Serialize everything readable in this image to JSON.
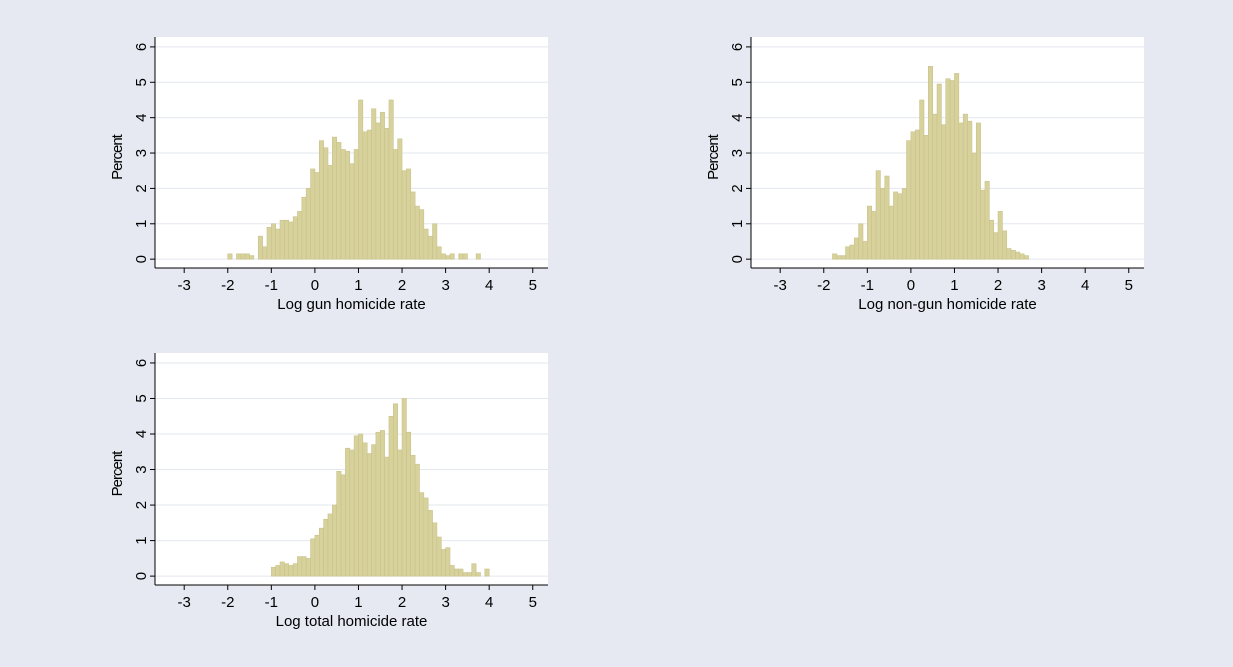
{
  "chart_data": [
    {
      "type": "histogram",
      "xlabel": "Log gun homicide rate",
      "ylabel": "Percent",
      "color": "#d7d29b",
      "bins": [
        -2.0,
        -1.9,
        -1.8,
        -1.7,
        -1.6,
        -1.5,
        -1.4,
        -1.3,
        -1.2,
        -1.1,
        -1.0,
        -0.9,
        -0.8,
        -0.7,
        -0.6,
        -0.5,
        -0.4,
        -0.3,
        -0.2,
        -0.1,
        0.0,
        0.1,
        0.2,
        0.3,
        0.4,
        0.5,
        0.6,
        0.7,
        0.8,
        0.9,
        1.0,
        1.1,
        1.2,
        1.3,
        1.4,
        1.5,
        1.6,
        1.7,
        1.8,
        1.9,
        2.0,
        2.1,
        2.2,
        2.3,
        2.4,
        2.5,
        2.6,
        2.7,
        2.8,
        2.9,
        3.0,
        3.1,
        3.2,
        3.3,
        3.4,
        3.5,
        3.6,
        3.7,
        3.8
      ],
      "values": [
        0.15,
        0,
        0.15,
        0.15,
        0.15,
        0.1,
        0,
        0.65,
        0.35,
        0.9,
        1.0,
        0.85,
        1.1,
        1.1,
        1.05,
        1.2,
        1.35,
        1.75,
        2.0,
        2.55,
        2.45,
        3.35,
        3.15,
        2.65,
        3.45,
        3.3,
        3.1,
        3.05,
        2.7,
        3.1,
        4.5,
        3.6,
        3.65,
        4.25,
        3.85,
        4.15,
        3.7,
        4.5,
        3.1,
        3.4,
        2.5,
        2.55,
        1.9,
        1.5,
        1.4,
        0.85,
        0.65,
        1.0,
        0.35,
        0.15,
        0.1,
        0.15,
        0,
        0.15,
        0.15,
        0,
        0,
        0.15
      ],
      "xlim": [
        -3.67,
        5.35
      ],
      "ylim": [
        -0.25,
        6.28
      ],
      "xticks": [
        -3,
        -2,
        -1,
        0,
        1,
        2,
        3,
        4,
        5
      ],
      "yticks": [
        0,
        1,
        2,
        3,
        4,
        5,
        6
      ],
      "grid": true
    },
    {
      "type": "histogram",
      "xlabel": "Log non-gun homicide rate",
      "ylabel": "Percent",
      "color": "#d7d29b",
      "bins": [
        -1.8,
        -1.7,
        -1.6,
        -1.5,
        -1.4,
        -1.3,
        -1.2,
        -1.1,
        -1.0,
        -0.9,
        -0.8,
        -0.7,
        -0.6,
        -0.5,
        -0.4,
        -0.3,
        -0.2,
        -0.1,
        0.0,
        0.1,
        0.2,
        0.3,
        0.4,
        0.5,
        0.6,
        0.7,
        0.8,
        0.9,
        1.0,
        1.1,
        1.2,
        1.3,
        1.4,
        1.5,
        1.6,
        1.7,
        1.8,
        1.9,
        2.0,
        2.1,
        2.2,
        2.3,
        2.4,
        2.5,
        2.6,
        2.7
      ],
      "values": [
        0.15,
        0.1,
        0.1,
        0.35,
        0.4,
        0.6,
        1.0,
        0.5,
        1.5,
        1.35,
        2.5,
        2.0,
        2.35,
        1.5,
        1.9,
        1.85,
        2.0,
        3.35,
        3.6,
        3.65,
        4.5,
        3.5,
        5.45,
        4.1,
        4.95,
        3.8,
        5.1,
        5.05,
        5.25,
        3.85,
        4.1,
        3.9,
        3.0,
        3.85,
        1.95,
        2.2,
        1.1,
        0.75,
        1.35,
        0.8,
        0.3,
        0.25,
        0.2,
        0.15,
        0.1
      ],
      "xlim": [
        -3.67,
        5.35
      ],
      "ylim": [
        -0.25,
        6.28
      ],
      "xticks": [
        -3,
        -2,
        -1,
        0,
        1,
        2,
        3,
        4,
        5
      ],
      "yticks": [
        0,
        1,
        2,
        3,
        4,
        5,
        6
      ],
      "grid": true
    },
    {
      "type": "histogram",
      "xlabel": "Log total homicide rate",
      "ylabel": "Percent",
      "color": "#d7d29b",
      "bins": [
        -1.0,
        -0.9,
        -0.8,
        -0.7,
        -0.6,
        -0.5,
        -0.4,
        -0.3,
        -0.2,
        -0.1,
        0.0,
        0.1,
        0.2,
        0.3,
        0.4,
        0.5,
        0.6,
        0.7,
        0.8,
        0.9,
        1.0,
        1.1,
        1.2,
        1.3,
        1.4,
        1.5,
        1.6,
        1.7,
        1.8,
        1.9,
        2.0,
        2.1,
        2.2,
        2.3,
        2.4,
        2.5,
        2.6,
        2.7,
        2.8,
        2.9,
        3.0,
        3.1,
        3.2,
        3.3,
        3.4,
        3.5,
        3.6,
        3.7,
        3.8,
        3.9,
        4.0
      ],
      "values": [
        0.25,
        0.3,
        0.4,
        0.35,
        0.3,
        0.35,
        0.55,
        0.55,
        0.5,
        1.05,
        1.15,
        1.35,
        1.6,
        1.75,
        2.0,
        2.95,
        2.85,
        3.6,
        3.55,
        3.95,
        4.0,
        3.75,
        3.45,
        3.7,
        4.05,
        4.1,
        3.35,
        4.5,
        4.85,
        3.55,
        5.0,
        4.05,
        3.4,
        3.15,
        2.35,
        2.2,
        1.85,
        1.5,
        1.1,
        0.75,
        0.8,
        0.3,
        0.2,
        0.2,
        0.1,
        0.1,
        0.35,
        0.1,
        0,
        0.2
      ],
      "xlim": [
        -3.67,
        5.35
      ],
      "ylim": [
        -0.25,
        6.28
      ],
      "xticks": [
        -3,
        -2,
        -1,
        0,
        1,
        2,
        3,
        4,
        5
      ],
      "yticks": [
        0,
        1,
        2,
        3,
        4,
        5,
        6
      ],
      "grid": true
    }
  ]
}
